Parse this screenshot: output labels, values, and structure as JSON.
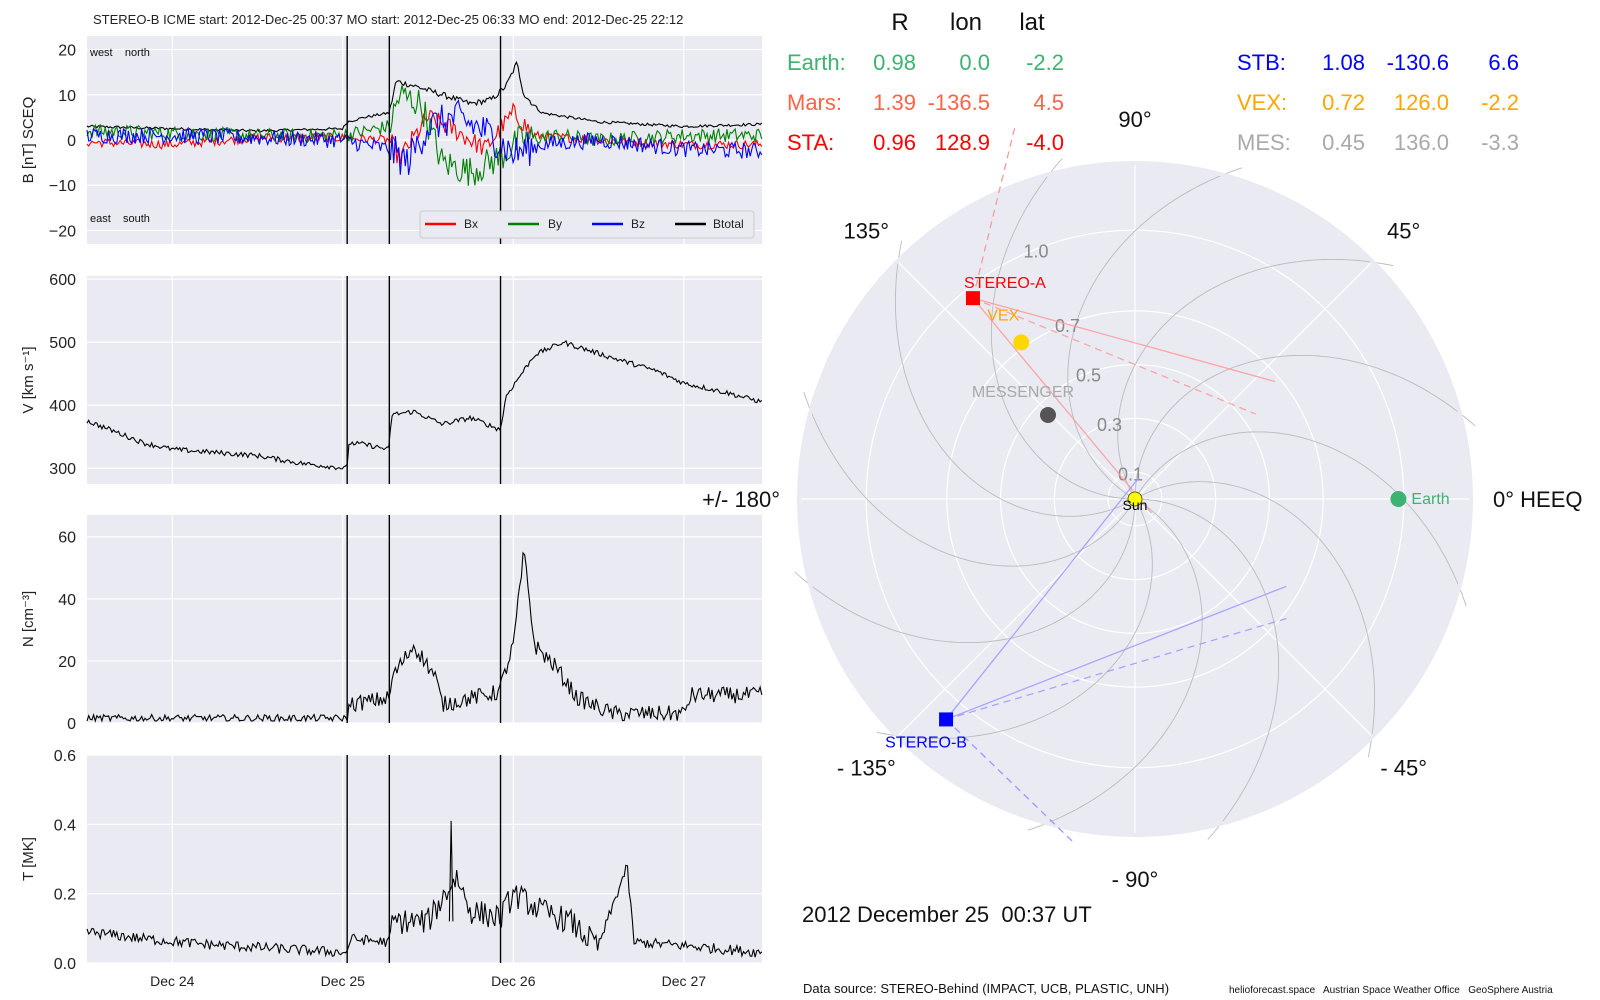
{
  "header": {
    "title": "STEREO-B    ICME start: 2012-Dec-25 00:37   MO start: 2012-Dec-25 06:33   MO end: 2012-Dec-25 22:12"
  },
  "footer": {
    "date_label": "2012 December 25  00:37 UT",
    "source": "Data source: STEREO-Behind (IMPACT, UCB, PLASTIC, UNH)",
    "credits": "helioforecast.space   Austrian Space Weather Office   GeoSphere Austria"
  },
  "colors": {
    "Bx": "#ff0000",
    "By": "#008000",
    "Bz": "#0000ff",
    "Btotal": "#000000",
    "panel_bg": "#eaeaf2",
    "grid": "#ffffff",
    "earth": "#3cb371",
    "mars": "#ff6347",
    "sta": "#ff0000",
    "stb": "#0000ff",
    "vex": "#ffa500",
    "mes": "#a9a9a9",
    "sun": "#ffff00"
  },
  "time_axis": {
    "start": "2012-12-23T12:00",
    "end": "2012-12-27T11:00",
    "ticks": [
      {
        "label": "Dec 24",
        "date": "2012-12-24T00:00"
      },
      {
        "label": "Dec 25",
        "date": "2012-12-25T00:00"
      },
      {
        "label": "Dec 26",
        "date": "2012-12-26T00:00"
      },
      {
        "label": "Dec 27",
        "date": "2012-12-27T00:00"
      }
    ]
  },
  "event_lines": [
    {
      "name": "ICME start",
      "date": "2012-12-25T00:37"
    },
    {
      "name": "MO start",
      "date": "2012-12-25T06:33"
    },
    {
      "name": "MO end",
      "date": "2012-12-25T22:12"
    }
  ],
  "chart_data": [
    {
      "type": "line",
      "id": "b",
      "ylabel": "B [nT] SCEQ",
      "ylim": [
        -23,
        23
      ],
      "yticks": [
        {
          "v": -20,
          "label": "−20"
        },
        {
          "v": -10,
          "label": "−10"
        },
        {
          "v": 0,
          "label": "0"
        },
        {
          "v": 10,
          "label": "10"
        },
        {
          "v": 20,
          "label": "20"
        }
      ],
      "annotations": {
        "top_left": "west    north",
        "bottom_left": "east    south"
      },
      "legend": {
        "placement": "lower-right",
        "entries": [
          "Bx",
          "By",
          "Bz",
          "Btotal"
        ]
      },
      "series": [
        {
          "name": "Btotal",
          "color": "#000000",
          "noise": 0.3,
          "points": [
            [
              "2012-12-23T12:00",
              3
            ],
            [
              "2012-12-24T00:00",
              2.5
            ],
            [
              "2012-12-24T12:00",
              2
            ],
            [
              "2012-12-25T00:00",
              2.5
            ],
            [
              "2012-12-25T00:37",
              4
            ],
            [
              "2012-12-25T03:00",
              5
            ],
            [
              "2012-12-25T06:33",
              6
            ],
            [
              "2012-12-25T07:30",
              13
            ],
            [
              "2012-12-25T10:00",
              12
            ],
            [
              "2012-12-25T14:00",
              10
            ],
            [
              "2012-12-25T18:00",
              8
            ],
            [
              "2012-12-25T21:00",
              9
            ],
            [
              "2012-12-25T23:00",
              12
            ],
            [
              "2012-12-26T00:30",
              17
            ],
            [
              "2012-12-26T01:30",
              10
            ],
            [
              "2012-12-26T04:00",
              6
            ],
            [
              "2012-12-26T12:00",
              4
            ],
            [
              "2012-12-27T00:00",
              3
            ],
            [
              "2012-12-27T11:00",
              3.5
            ]
          ]
        },
        {
          "name": "Bx",
          "color": "#ff0000",
          "noise": 1.0,
          "points": [
            [
              "2012-12-23T12:00",
              -0.5
            ],
            [
              "2012-12-24T00:00",
              -1
            ],
            [
              "2012-12-24T12:00",
              0.5
            ],
            [
              "2012-12-25T00:00",
              0.5
            ],
            [
              "2012-12-25T06:33",
              0
            ],
            [
              "2012-12-25T08:00",
              -4
            ],
            [
              "2012-12-25T12:00",
              5
            ],
            [
              "2012-12-25T16:00",
              2
            ],
            [
              "2012-12-25T20:00",
              -2
            ],
            [
              "2012-12-26T00:00",
              6
            ],
            [
              "2012-12-26T03:00",
              1
            ],
            [
              "2012-12-26T12:00",
              0
            ],
            [
              "2012-12-27T00:00",
              -1
            ],
            [
              "2012-12-27T11:00",
              -1
            ]
          ]
        },
        {
          "name": "By",
          "color": "#008000",
          "noise": 1.6,
          "points": [
            [
              "2012-12-23T12:00",
              2
            ],
            [
              "2012-12-24T00:00",
              1.5
            ],
            [
              "2012-12-24T12:00",
              1
            ],
            [
              "2012-12-25T00:00",
              1
            ],
            [
              "2012-12-25T06:33",
              3
            ],
            [
              "2012-12-25T08:00",
              10
            ],
            [
              "2012-12-25T11:00",
              8
            ],
            [
              "2012-12-25T14:00",
              -5
            ],
            [
              "2012-12-25T18:00",
              -7
            ],
            [
              "2012-12-25T22:00",
              -4
            ],
            [
              "2012-12-26T01:00",
              0
            ],
            [
              "2012-12-26T06:00",
              1
            ],
            [
              "2012-12-26T12:00",
              0
            ],
            [
              "2012-12-27T00:00",
              1
            ],
            [
              "2012-12-27T11:00",
              1
            ]
          ]
        },
        {
          "name": "Bz",
          "color": "#0000ff",
          "noise": 1.8,
          "points": [
            [
              "2012-12-23T12:00",
              1
            ],
            [
              "2012-12-24T00:00",
              1
            ],
            [
              "2012-12-24T12:00",
              0.5
            ],
            [
              "2012-12-25T00:00",
              0
            ],
            [
              "2012-12-25T03:00",
              -1
            ],
            [
              "2012-12-25T06:33",
              -2
            ],
            [
              "2012-12-25T09:00",
              -5
            ],
            [
              "2012-12-25T12:00",
              3
            ],
            [
              "2012-12-25T16:00",
              5
            ],
            [
              "2012-12-25T20:00",
              2
            ],
            [
              "2012-12-26T00:00",
              -3
            ],
            [
              "2012-12-26T04:00",
              -1
            ],
            [
              "2012-12-26T12:00",
              0
            ],
            [
              "2012-12-27T00:00",
              -2
            ],
            [
              "2012-12-27T11:00",
              -2.5
            ]
          ]
        }
      ]
    },
    {
      "type": "line",
      "id": "v",
      "ylabel": "V [km s⁻¹]",
      "ylim": [
        275,
        605
      ],
      "yticks": [
        {
          "v": 300,
          "label": "300"
        },
        {
          "v": 400,
          "label": "400"
        },
        {
          "v": 500,
          "label": "500"
        },
        {
          "v": 600,
          "label": "600"
        }
      ],
      "series": [
        {
          "name": "V",
          "color": "#000000",
          "noise": 4,
          "points": [
            [
              "2012-12-23T12:00",
              375
            ],
            [
              "2012-12-23T16:00",
              358
            ],
            [
              "2012-12-23T20:00",
              340
            ],
            [
              "2012-12-24T00:00",
              330
            ],
            [
              "2012-12-24T12:00",
              320
            ],
            [
              "2012-12-24T18:00",
              308
            ],
            [
              "2012-12-25T00:30",
              300
            ],
            [
              "2012-12-25T00:37",
              300
            ],
            [
              "2012-12-25T00:50",
              340
            ],
            [
              "2012-12-25T03:00",
              338
            ],
            [
              "2012-12-25T06:20",
              330
            ],
            [
              "2012-12-25T06:33",
              330
            ],
            [
              "2012-12-25T06:50",
              385
            ],
            [
              "2012-12-25T10:00",
              390
            ],
            [
              "2012-12-25T14:00",
              370
            ],
            [
              "2012-12-25T18:00",
              380
            ],
            [
              "2012-12-25T22:00",
              362
            ],
            [
              "2012-12-25T22:12",
              362
            ],
            [
              "2012-12-25T23:00",
              415
            ],
            [
              "2012-12-26T03:00",
              480
            ],
            [
              "2012-12-26T07:00",
              500
            ],
            [
              "2012-12-26T14:00",
              475
            ],
            [
              "2012-12-26T20:00",
              455
            ],
            [
              "2012-12-27T00:00",
              435
            ],
            [
              "2012-12-27T06:00",
              420
            ],
            [
              "2012-12-27T11:00",
              405
            ]
          ]
        }
      ]
    },
    {
      "type": "line",
      "id": "n",
      "ylabel": "N [cm⁻³]",
      "ylim": [
        0,
        67
      ],
      "yticks": [
        {
          "v": 0,
          "label": "0"
        },
        {
          "v": 20,
          "label": "20"
        },
        {
          "v": 40,
          "label": "40"
        },
        {
          "v": 60,
          "label": "60"
        }
      ],
      "series": [
        {
          "name": "N",
          "color": "#000000",
          "noise": 1.2,
          "points": [
            [
              "2012-12-23T12:00",
              1.5
            ],
            [
              "2012-12-24T00:00",
              1.5
            ],
            [
              "2012-12-24T12:00",
              1.5
            ],
            [
              "2012-12-25T00:30",
              1.5
            ],
            [
              "2012-12-25T00:37",
              2
            ],
            [
              "2012-12-25T01:00",
              6
            ],
            [
              "2012-12-25T06:33",
              8
            ],
            [
              "2012-12-25T07:00",
              15
            ],
            [
              "2012-12-25T10:00",
              25
            ],
            [
              "2012-12-25T13:00",
              15
            ],
            [
              "2012-12-25T14:00",
              6
            ],
            [
              "2012-12-25T18:00",
              8
            ],
            [
              "2012-12-25T22:00",
              10
            ],
            [
              "2012-12-26T00:00",
              25
            ],
            [
              "2012-12-26T01:30",
              55
            ],
            [
              "2012-12-26T03:00",
              25
            ],
            [
              "2012-12-26T06:00",
              18
            ],
            [
              "2012-12-26T09:00",
              8
            ],
            [
              "2012-12-26T14:00",
              3
            ],
            [
              "2012-12-27T00:00",
              3
            ],
            [
              "2012-12-27T01:00",
              9
            ],
            [
              "2012-12-27T11:00",
              9
            ]
          ]
        }
      ]
    },
    {
      "type": "line",
      "id": "t",
      "ylabel": "T [MK]",
      "ylim": [
        0,
        0.6
      ],
      "yticks": [
        {
          "v": 0,
          "label": "0.0"
        },
        {
          "v": 0.2,
          "label": "0.2"
        },
        {
          "v": 0.4,
          "label": "0.4"
        },
        {
          "v": 0.6,
          "label": "0.6"
        }
      ],
      "series": [
        {
          "name": "T",
          "color": "#000000",
          "noise": 0.015,
          "points": [
            [
              "2012-12-23T12:00",
              0.09
            ],
            [
              "2012-12-23T20:00",
              0.07
            ],
            [
              "2012-12-24T04:00",
              0.055
            ],
            [
              "2012-12-24T12:00",
              0.045
            ],
            [
              "2012-12-25T00:30",
              0.03
            ],
            [
              "2012-12-25T00:37",
              0.03
            ],
            [
              "2012-12-25T01:00",
              0.07
            ],
            [
              "2012-12-25T06:33",
              0.06
            ],
            [
              "2012-12-25T07:00",
              0.12
            ],
            [
              "2012-12-25T12:00",
              0.12
            ],
            [
              "2012-12-25T16:00",
              0.25
            ],
            [
              "2012-12-25T18:00",
              0.15
            ],
            [
              "2012-12-25T22:12",
              0.13
            ],
            [
              "2012-12-26T00:00",
              0.2
            ],
            [
              "2012-12-26T04:00",
              0.15
            ],
            [
              "2012-12-26T08:00",
              0.12
            ],
            [
              "2012-12-26T10:00",
              0.08
            ],
            [
              "2012-12-26T12:00",
              0.05
            ],
            [
              "2012-12-26T16:00",
              0.28
            ],
            [
              "2012-12-26T17:00",
              0.06
            ],
            [
              "2012-12-27T00:00",
              0.05
            ],
            [
              "2012-12-27T11:00",
              0.03
            ]
          ]
        },
        {
          "name": "T-spike",
          "color": "#000000",
          "noise": 0,
          "points": [
            [
              "2012-12-25T15:00",
              0.12
            ],
            [
              "2012-12-25T15:15",
              0.41
            ],
            [
              "2012-12-25T15:30",
              0.12
            ]
          ]
        }
      ]
    },
    {
      "type": "polar",
      "id": "orbit",
      "coordinate_system": "0° HEEQ",
      "r_ticks": [
        {
          "r": 0.1,
          "label": "0.1"
        },
        {
          "r": 0.3,
          "label": "0.3"
        },
        {
          "r": 0.5,
          "label": "0.5"
        },
        {
          "r": 0.7,
          "label": "0.7"
        },
        {
          "r": 1.0,
          "label": "1.0"
        }
      ],
      "angle_labels": [
        {
          "deg": 0,
          "label": "0° HEEQ"
        },
        {
          "deg": 45,
          "label": "45°"
        },
        {
          "deg": 90,
          "label": "90°"
        },
        {
          "deg": 135,
          "label": "135°"
        },
        {
          "deg": 180,
          "label": "+/- 180°"
        },
        {
          "deg": -135,
          "label": "- 135°"
        },
        {
          "deg": -90,
          "label": "- 90°"
        },
        {
          "deg": -45,
          "label": "- 45°"
        }
      ],
      "bodies": [
        {
          "id": "sun",
          "label": "Sun",
          "r": 0,
          "lon": 0,
          "color": "#ffff00",
          "marker": "circle",
          "label_color": "#000000"
        },
        {
          "id": "earth",
          "label": "Earth",
          "r": 0.98,
          "lon": 0.0,
          "color": "#3cb371",
          "marker": "circle",
          "label_color": "#3cb371"
        },
        {
          "id": "sta",
          "label": "STEREO-A",
          "r": 0.96,
          "lon": 128.9,
          "color": "#ff0000",
          "marker": "square",
          "label_color": "#ff0000"
        },
        {
          "id": "stb",
          "label": "STEREO-B",
          "r": 1.08,
          "lon": -130.6,
          "color": "#0000ff",
          "marker": "square",
          "label_color": "#0000ff"
        },
        {
          "id": "vex",
          "label": "VEX",
          "r": 0.72,
          "lon": 126.0,
          "color": "#ffd700",
          "marker": "circle",
          "label_color": "#ffa500"
        },
        {
          "id": "mes",
          "label": "MESSENGER",
          "r": 0.45,
          "lon": 136.0,
          "color": "#555555",
          "marker": "circle",
          "label_color": "#a9a9a9"
        }
      ],
      "table": {
        "headers": [
          "R",
          "lon",
          "lat"
        ],
        "rows": [
          {
            "name": "Earth:",
            "R": "0.98",
            "lon": "0.0",
            "lat": "-2.2",
            "color": "#3cb371"
          },
          {
            "name": "Mars:",
            "R": "1.39",
            "lon": "-136.5",
            "lat": "4.5",
            "color": "#ff6347"
          },
          {
            "name": "STA:",
            "R": "0.96",
            "lon": "128.9",
            "lat": "-4.0",
            "color": "#ff0000"
          },
          {
            "name": "STB:",
            "R": "1.08",
            "lon": "-130.6",
            "lat": "6.6",
            "color": "#0000ff"
          },
          {
            "name": "VEX:",
            "R": "0.72",
            "lon": "126.0",
            "lat": "-2.2",
            "color": "#ffa500"
          },
          {
            "name": "MES:",
            "R": "0.45",
            "lon": "136.0",
            "lat": "-3.3",
            "color": "#a9a9a9"
          }
        ]
      }
    }
  ]
}
